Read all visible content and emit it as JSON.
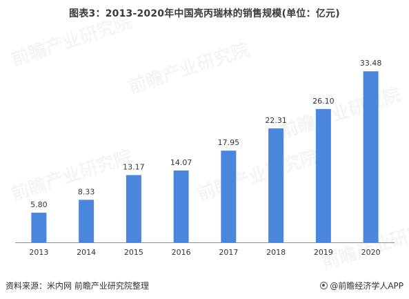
{
  "title": "图表3：2013-2020年中国亮丙瑞林的销售规模(单位：亿元)",
  "source": "资料来源：米内网 前瞻产业研究院整理",
  "brand": "@前瞻经济学人APP",
  "watermark": "前瞻产业研究院",
  "colors": {
    "bar": "#4a87dc",
    "axis": "#8c8c8c",
    "text": "#333333"
  },
  "chart_data": {
    "type": "bar",
    "categories": [
      "2013",
      "2014",
      "2015",
      "2016",
      "2017",
      "2018",
      "2019",
      "2020"
    ],
    "values": [
      5.8,
      8.33,
      13.17,
      14.07,
      17.95,
      22.31,
      26.1,
      33.48
    ],
    "value_labels": [
      "5.80",
      "8.33",
      "13.17",
      "14.07",
      "17.95",
      "22.31",
      "26.10",
      "33.48"
    ],
    "title": "图表3：2013-2020年中国亮丙瑞林的销售规模(单位：亿元)",
    "xlabel": "",
    "ylabel": "",
    "ylim": [
      0,
      36
    ],
    "grid": false,
    "legend": "none"
  }
}
